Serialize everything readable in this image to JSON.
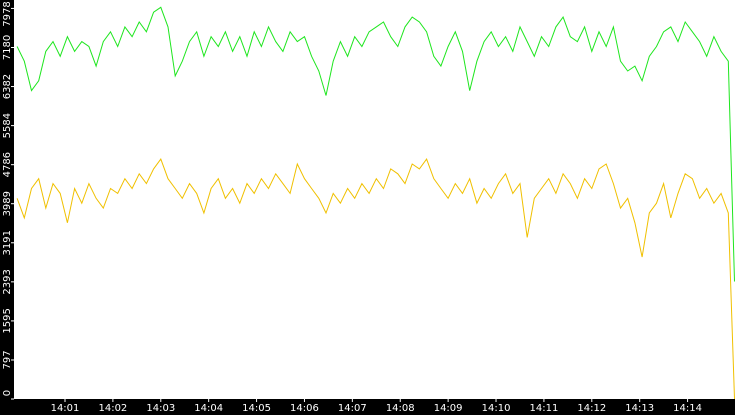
{
  "chart_data": {
    "type": "line",
    "x": [
      0,
      0.15,
      0.3,
      0.45,
      0.6,
      0.75,
      0.9,
      1.05,
      1.2,
      1.35,
      1.5,
      1.65,
      1.8,
      1.95,
      2.1,
      2.25,
      2.4,
      2.55,
      2.7,
      2.85,
      3,
      3.15,
      3.3,
      3.45,
      3.6,
      3.75,
      3.9,
      4.05,
      4.2,
      4.35,
      4.5,
      4.65,
      4.8,
      4.95,
      5.1,
      5.25,
      5.4,
      5.55,
      5.7,
      5.85,
      6,
      6.15,
      6.3,
      6.45,
      6.6,
      6.75,
      6.9,
      7.05,
      7.2,
      7.35,
      7.5,
      7.65,
      7.8,
      7.95,
      8.1,
      8.25,
      8.4,
      8.55,
      8.7,
      8.85,
      9,
      9.15,
      9.3,
      9.45,
      9.6,
      9.75,
      9.9,
      10.05,
      10.2,
      10.35,
      10.5,
      10.65,
      10.8,
      10.95,
      11.1,
      11.25,
      11.4,
      11.55,
      11.7,
      11.85,
      12,
      12.15,
      12.3,
      12.45,
      12.6,
      12.75,
      12.9,
      13.05,
      13.2,
      13.35,
      13.5,
      13.65,
      13.8,
      13.95,
      14.1,
      14.25,
      14.4,
      14.55,
      14.7,
      14.85,
      14.98
    ],
    "series": [
      {
        "color": "#1ee61e",
        "values": [
          7200,
          6900,
          6300,
          6500,
          7100,
          7300,
          7000,
          7400,
          7100,
          7300,
          7200,
          6800,
          7300,
          7500,
          7200,
          7600,
          7400,
          7700,
          7500,
          7900,
          8000,
          7600,
          6600,
          6900,
          7300,
          7500,
          7000,
          7400,
          7200,
          7500,
          7100,
          7400,
          7000,
          7500,
          7200,
          7600,
          7300,
          7100,
          7500,
          7300,
          7400,
          7000,
          6700,
          6200,
          6900,
          7300,
          7000,
          7400,
          7200,
          7500,
          7600,
          7700,
          7400,
          7200,
          7600,
          7800,
          7700,
          7500,
          7000,
          6800,
          7200,
          7500,
          7100,
          6300,
          6900,
          7300,
          7500,
          7200,
          7400,
          7100,
          7600,
          7300,
          7000,
          7400,
          7200,
          7600,
          7800,
          7400,
          7300,
          7600,
          7100,
          7500,
          7200,
          7600,
          6900,
          6700,
          6800,
          6500,
          7000,
          7200,
          7500,
          7600,
          7300,
          7700,
          7500,
          7300,
          7000,
          7400,
          7100,
          6900,
          2400
        ]
      },
      {
        "color": "#f0c000",
        "values": [
          4100,
          3700,
          4300,
          4500,
          3900,
          4400,
          4200,
          3600,
          4300,
          4000,
          4400,
          4100,
          3900,
          4300,
          4200,
          4500,
          4300,
          4600,
          4400,
          4700,
          4900,
          4500,
          4300,
          4100,
          4400,
          4200,
          3800,
          4300,
          4500,
          4100,
          4300,
          4000,
          4400,
          4200,
          4500,
          4300,
          4600,
          4400,
          4200,
          4800,
          4500,
          4300,
          4100,
          3800,
          4200,
          4000,
          4300,
          4100,
          4400,
          4200,
          4500,
          4300,
          4700,
          4600,
          4400,
          4800,
          4700,
          4900,
          4500,
          4300,
          4100,
          4400,
          4200,
          4500,
          4000,
          4300,
          4100,
          4400,
          4600,
          4200,
          4400,
          3300,
          4100,
          4300,
          4500,
          4200,
          4600,
          4400,
          4100,
          4500,
          4300,
          4700,
          4800,
          4400,
          3900,
          4100,
          3600,
          2900,
          3800,
          4000,
          4400,
          3700,
          4200,
          4600,
          4500,
          4100,
          4300,
          4000,
          4200,
          3800,
          0
        ]
      }
    ],
    "xlim": [
      -0.065,
      14.99
    ],
    "xticks": [
      {
        "value": 1,
        "label": "14:01"
      },
      {
        "value": 2,
        "label": "14:02"
      },
      {
        "value": 3,
        "label": "14:03"
      },
      {
        "value": 4,
        "label": "14:04"
      },
      {
        "value": 5,
        "label": "14:05"
      },
      {
        "value": 6,
        "label": "14:06"
      },
      {
        "value": 7,
        "label": "14:07"
      },
      {
        "value": 8,
        "label": "14:08"
      },
      {
        "value": 9,
        "label": "14:09"
      },
      {
        "value": 10,
        "label": "14:10"
      },
      {
        "value": 11,
        "label": "14:11"
      },
      {
        "value": 12,
        "label": "14:12"
      },
      {
        "value": 13,
        "label": "14:13"
      },
      {
        "value": 14,
        "label": "14:14"
      }
    ],
    "ylim": [
      0,
      8150
    ],
    "yticks": [
      0,
      797,
      1595,
      2393,
      3191,
      3989,
      4786,
      5584,
      6382,
      7180,
      7978
    ]
  }
}
